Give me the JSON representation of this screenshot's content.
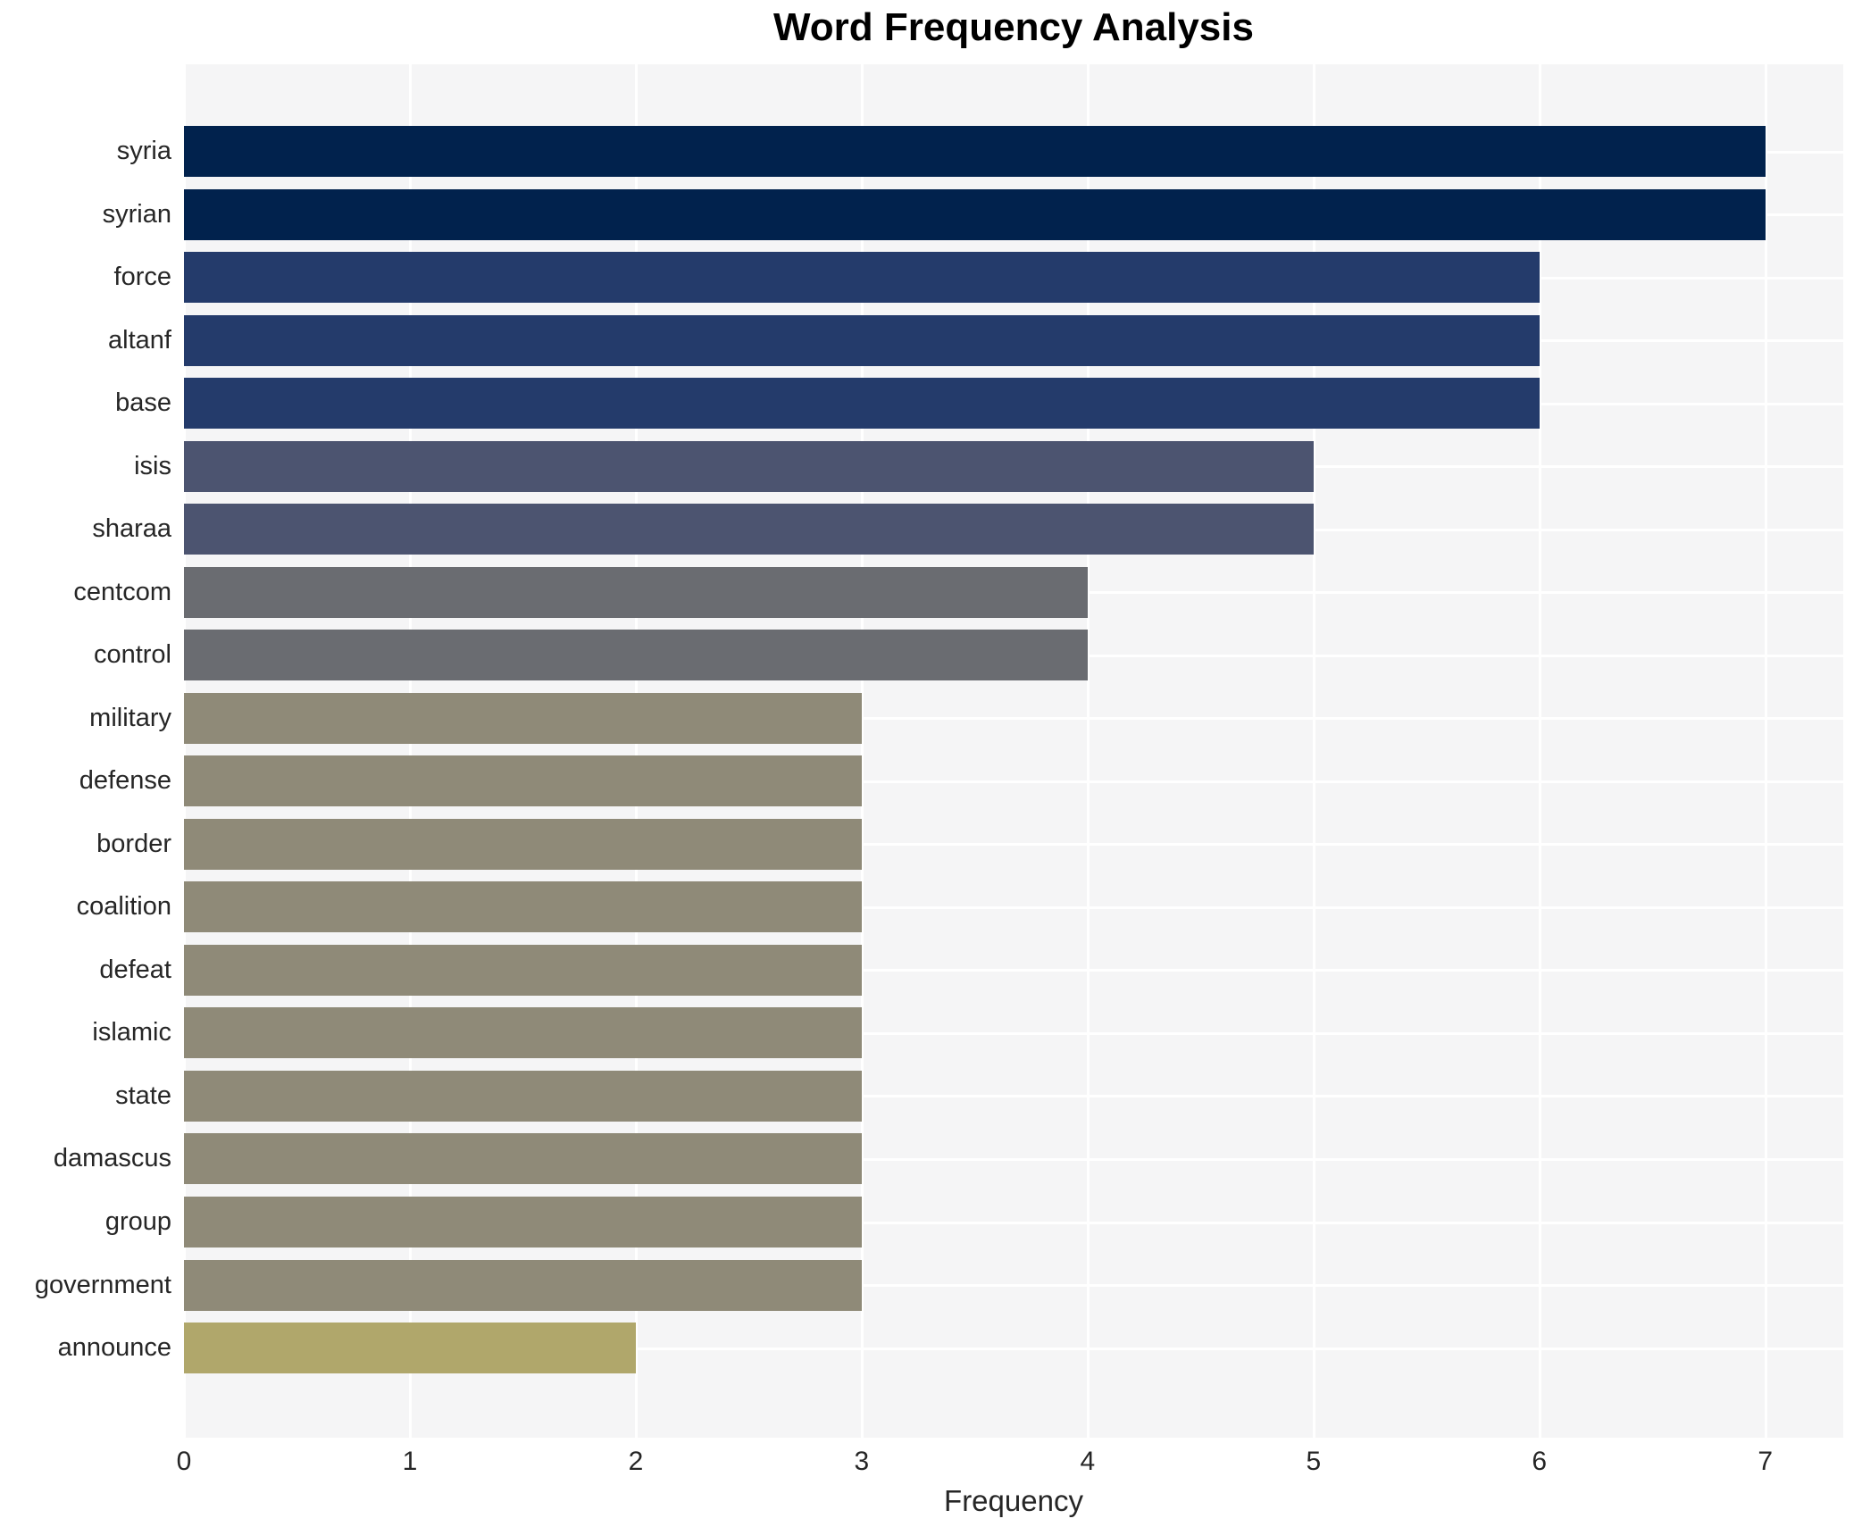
{
  "chart_data": {
    "type": "bar",
    "orientation": "horizontal",
    "title": "Word Frequency Analysis",
    "xlabel": "Frequency",
    "ylabel": "",
    "categories": [
      "syria",
      "syrian",
      "force",
      "altanf",
      "base",
      "isis",
      "sharaa",
      "centcom",
      "control",
      "military",
      "defense",
      "border",
      "coalition",
      "defeat",
      "islamic",
      "state",
      "damascus",
      "group",
      "government",
      "announce"
    ],
    "values": [
      7,
      7,
      6,
      6,
      6,
      5,
      5,
      4,
      4,
      3,
      3,
      3,
      3,
      3,
      3,
      3,
      3,
      3,
      3,
      2
    ],
    "xticks": [
      0,
      1,
      2,
      3,
      4,
      5,
      6,
      7
    ],
    "xlim": [
      0,
      7.345
    ],
    "grid": "white gridlines at x ticks and category centers",
    "legend": "none",
    "colors_by_value": {
      "7": "#01224d",
      "6": "#243b6b",
      "5": "#4c5470",
      "4": "#6a6c71",
      "3": "#8f8a78",
      "2": "#b0a76b"
    },
    "plot_background": "#f5f5f6",
    "gridline_color": "#ffffff",
    "tick_text_color": "#262626",
    "title_color": "#000000"
  }
}
